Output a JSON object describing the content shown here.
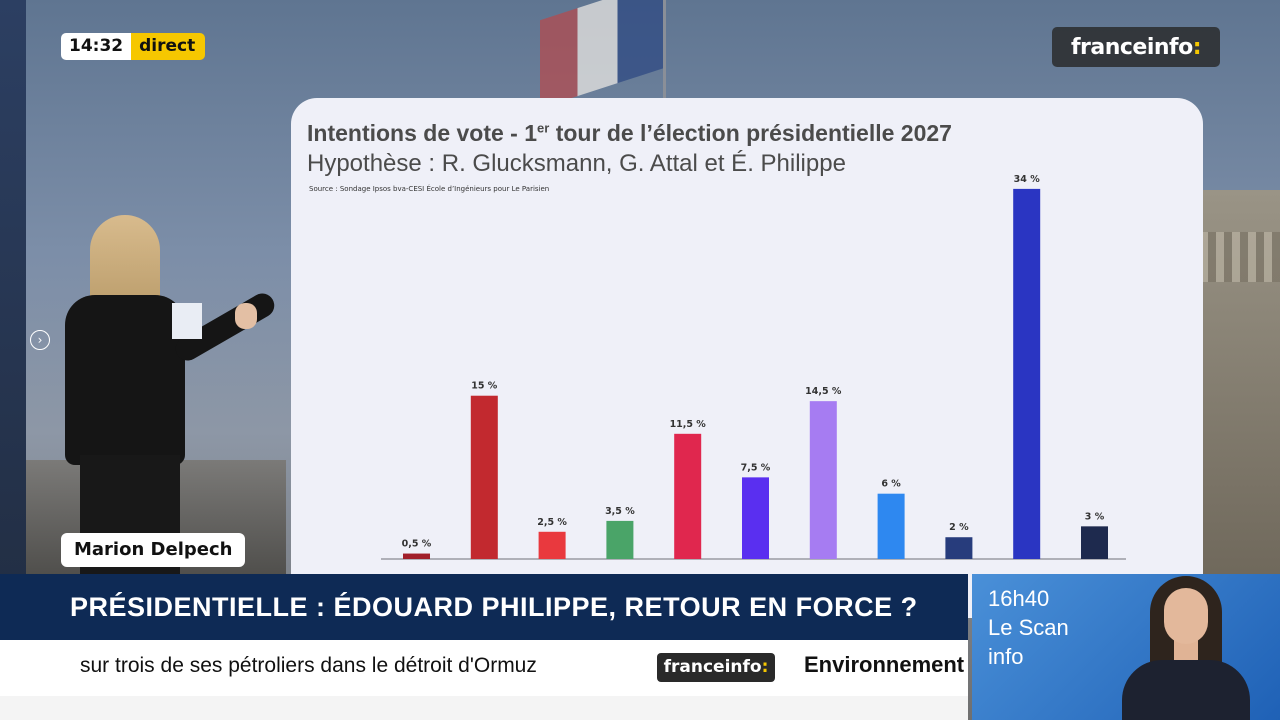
{
  "live": {
    "time": "14:32",
    "label": "direct"
  },
  "channel_logo": {
    "name": "franceinfo",
    "suffix": ":"
  },
  "presenter_name": "Marion Delpech",
  "chart": {
    "title": "Intentions de vote - 1",
    "title_sup": "er",
    "title_rest": " tour de l’élection présidentielle 2027",
    "subtitle": "Hypothèse : R. Glucksmann, G. Attal et É. Philippe",
    "source": "Source : Sondage Ipsos bva-CESI École d’Ingénieurs pour Le Parisien"
  },
  "chart_data": {
    "type": "bar",
    "title": "Intentions de vote - 1er tour de l’élection présidentielle 2027",
    "subtitle": "Hypothèse : R. Glucksmann, G. Attal et É. Philippe",
    "categories": [
      "",
      "",
      "",
      "",
      "",
      "",
      "",
      "",
      "",
      "",
      ""
    ],
    "values": [
      0.5,
      15,
      2.5,
      3.5,
      11.5,
      7.5,
      14.5,
      6,
      2,
      34,
      3
    ],
    "labels": [
      "0,5 %",
      "15 %",
      "2,5 %",
      "3,5 %",
      "11,5 %",
      "7,5 %",
      "14,5 %",
      "6 %",
      "2 %",
      "34 %",
      "3 %"
    ],
    "colors": [
      "#a11f2a",
      "#c2292f",
      "#e9393e",
      "#4aa468",
      "#e0274e",
      "#5a2ff0",
      "#a67cf2",
      "#2e88f0",
      "#273c7c",
      "#2a35c2",
      "#1e2a4e"
    ],
    "ylim": [
      0,
      35
    ],
    "grid": false,
    "legend": "none"
  },
  "headline": "PRÉSIDENTIELLE : ÉDOUARD PHILIPPE, RETOUR EN FORCE ?",
  "ticker": {
    "text": "sur trois de ses pétroliers dans le détroit d'Ormuz",
    "logo": "franceinfo",
    "logo_suffix": ":",
    "category": "Environnement"
  },
  "promo": {
    "text": "16h40\nLe Scan\ninfo"
  }
}
